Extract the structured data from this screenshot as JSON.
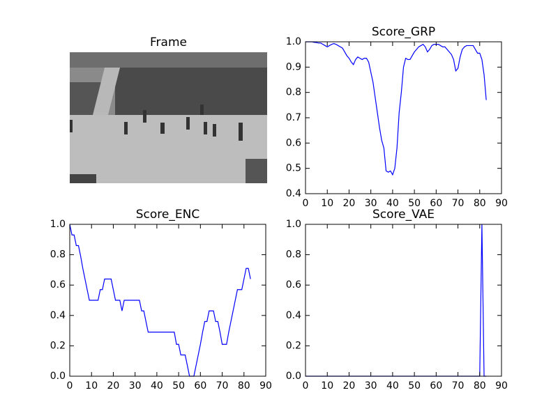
{
  "chart_data": [
    {
      "type": "image",
      "title": "Frame"
    },
    {
      "type": "line",
      "title": "Score_GRP",
      "color": "#0000ff",
      "x": [
        0,
        1,
        2,
        3,
        4,
        5,
        6,
        7,
        8,
        9,
        10,
        11,
        12,
        13,
        14,
        15,
        16,
        17,
        18,
        19,
        20,
        21,
        22,
        23,
        24,
        25,
        26,
        27,
        28,
        29,
        30,
        31,
        32,
        33,
        34,
        35,
        36,
        37,
        38,
        39,
        40,
        41,
        42,
        43,
        44,
        45,
        46,
        47,
        48,
        49,
        50,
        51,
        52,
        53,
        54,
        55,
        56,
        57,
        58,
        59,
        60,
        61,
        62,
        63,
        64,
        65,
        66,
        67,
        68,
        69,
        70,
        71,
        72,
        73,
        74,
        75,
        76,
        77,
        78,
        79,
        80,
        81,
        82,
        83
      ],
      "values": [
        1.0,
        1.0,
        1.0,
        1.0,
        0.998,
        0.997,
        0.995,
        0.995,
        0.99,
        0.985,
        0.98,
        0.985,
        0.99,
        0.993,
        0.99,
        0.985,
        0.98,
        0.975,
        0.96,
        0.945,
        0.935,
        0.92,
        0.91,
        0.93,
        0.94,
        0.935,
        0.93,
        0.935,
        0.935,
        0.92,
        0.88,
        0.84,
        0.78,
        0.72,
        0.66,
        0.61,
        0.58,
        0.49,
        0.485,
        0.49,
        0.475,
        0.5,
        0.58,
        0.72,
        0.8,
        0.9,
        0.935,
        0.93,
        0.93,
        0.945,
        0.96,
        0.97,
        0.98,
        0.985,
        0.99,
        0.98,
        0.96,
        0.97,
        0.985,
        0.99,
        0.99,
        0.99,
        0.985,
        0.98,
        0.98,
        0.97,
        0.96,
        0.95,
        0.93,
        0.885,
        0.895,
        0.94,
        0.97,
        0.98,
        0.985,
        0.985,
        0.985,
        0.985,
        0.97,
        0.955,
        0.955,
        0.93,
        0.87,
        0.77
      ],
      "xlim": [
        0,
        90
      ],
      "xticks": [
        0,
        10,
        20,
        30,
        40,
        50,
        60,
        70,
        80,
        90
      ],
      "ylim": [
        0.4,
        1.0
      ],
      "yticks": [
        0.4,
        0.5,
        0.6,
        0.7,
        0.8,
        0.9,
        {
          "value": 1,
          "label": "1.0"
        }
      ]
    },
    {
      "type": "line",
      "title": "Score_ENC",
      "color": "#0000ff",
      "x": [
        0,
        1,
        2,
        3,
        4,
        5,
        6,
        7,
        8,
        9,
        10,
        11,
        12,
        13,
        14,
        15,
        16,
        17,
        18,
        19,
        20,
        21,
        22,
        23,
        24,
        25,
        26,
        27,
        28,
        29,
        30,
        31,
        32,
        33,
        34,
        35,
        36,
        37,
        38,
        39,
        40,
        41,
        42,
        43,
        44,
        45,
        46,
        47,
        48,
        49,
        50,
        51,
        52,
        53,
        54,
        55,
        56,
        57,
        58,
        59,
        60,
        61,
        62,
        63,
        64,
        65,
        66,
        67,
        68,
        69,
        70,
        71,
        72,
        73,
        74,
        75,
        76,
        77,
        78,
        79,
        80,
        81,
        82,
        83
      ],
      "values": [
        1.0,
        0.93,
        0.93,
        0.86,
        0.86,
        0.79,
        0.71,
        0.64,
        0.57,
        0.5,
        0.5,
        0.5,
        0.5,
        0.5,
        0.57,
        0.57,
        0.64,
        0.64,
        0.64,
        0.64,
        0.57,
        0.5,
        0.5,
        0.5,
        0.43,
        0.5,
        0.5,
        0.5,
        0.5,
        0.5,
        0.5,
        0.5,
        0.5,
        0.43,
        0.43,
        0.36,
        0.29,
        0.29,
        0.29,
        0.29,
        0.29,
        0.29,
        0.29,
        0.29,
        0.29,
        0.29,
        0.29,
        0.29,
        0.29,
        0.21,
        0.21,
        0.14,
        0.14,
        0.14,
        0.07,
        0,
        0,
        0,
        0.07,
        0.14,
        0.21,
        0.29,
        0.36,
        0.36,
        0.43,
        0.43,
        0.43,
        0.36,
        0.36,
        0.29,
        0.21,
        0.21,
        0.21,
        0.29,
        0.36,
        0.43,
        0.5,
        0.57,
        0.57,
        0.57,
        0.64,
        0.71,
        0.71,
        0.64
      ],
      "xlim": [
        0,
        90
      ],
      "xticks": [
        0,
        10,
        20,
        30,
        40,
        50,
        60,
        70,
        80,
        90
      ],
      "ylim": [
        0,
        1.0
      ],
      "yticks": [
        {
          "value": 0,
          "label": "0.0"
        },
        0.2,
        0.4,
        0.6,
        0.8,
        {
          "value": 1,
          "label": "1.0"
        }
      ]
    },
    {
      "type": "line",
      "title": "Score_VAE",
      "color": "#0000ff",
      "x": [
        0,
        1,
        2,
        3,
        4,
        5,
        6,
        7,
        8,
        9,
        10,
        11,
        12,
        13,
        14,
        15,
        16,
        17,
        18,
        19,
        20,
        21,
        22,
        23,
        24,
        25,
        26,
        27,
        28,
        29,
        30,
        31,
        32,
        33,
        34,
        35,
        36,
        37,
        38,
        39,
        40,
        41,
        42,
        43,
        44,
        45,
        46,
        47,
        48,
        49,
        50,
        51,
        52,
        53,
        54,
        55,
        56,
        57,
        58,
        59,
        60,
        61,
        62,
        63,
        64,
        65,
        66,
        67,
        68,
        69,
        70,
        71,
        72,
        73,
        74,
        75,
        76,
        77,
        78,
        79,
        80,
        81,
        82,
        83
      ],
      "values": [
        0,
        0,
        0,
        0,
        0,
        0,
        0,
        0,
        0,
        0,
        0,
        0,
        0,
        0,
        0,
        0,
        0,
        0,
        0,
        0,
        0,
        0,
        0,
        0,
        0,
        0,
        0,
        0,
        0,
        0,
        0,
        0,
        0,
        0,
        0,
        0,
        0,
        0,
        0,
        0,
        0,
        0,
        0,
        0,
        0,
        0,
        0,
        0,
        0,
        0,
        0,
        0,
        0,
        0,
        0,
        0,
        0,
        0,
        0,
        0,
        0,
        0,
        0,
        0,
        0,
        0,
        0,
        0,
        0,
        0,
        0,
        0,
        0,
        0,
        0,
        0,
        0,
        0,
        0,
        0,
        0,
        1,
        0,
        0
      ],
      "xlim": [
        0,
        90
      ],
      "xticks": [
        0,
        10,
        20,
        30,
        40,
        50,
        60,
        70,
        80,
        90
      ],
      "ylim": [
        0,
        1.0
      ],
      "yticks": [
        {
          "value": 0,
          "label": "0.0"
        },
        0.2,
        0.4,
        0.6,
        0.8,
        {
          "value": 1,
          "label": "1.0"
        }
      ]
    }
  ]
}
